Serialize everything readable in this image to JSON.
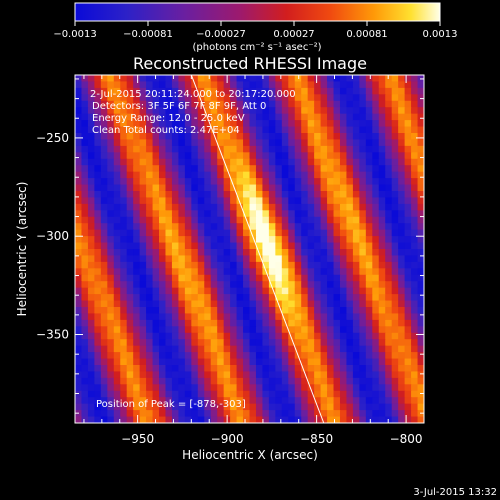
{
  "chart_data": {
    "type": "heatmap",
    "title": "Reconstructed RHESSI Image",
    "xlabel": "Heliocentric X (arcsec)",
    "ylabel": "Heliocentric Y (arcsec)",
    "xlim": [
      -985,
      -790
    ],
    "ylim": [
      -395,
      -218
    ],
    "x_ticks": [
      -950,
      -900,
      -850,
      -800
    ],
    "x_tick_labels": [
      "−950",
      "−900",
      "−850",
      "−800"
    ],
    "y_ticks": [
      -250,
      -300,
      -350
    ],
    "y_tick_labels": [
      "−250",
      "−300",
      "−350"
    ],
    "colorbar": {
      "range": [
        -0.0013,
        0.0013
      ],
      "tick_labels": [
        "−0.0013",
        "−0.00081",
        "−0.00027",
        "0.00027",
        "0.00081",
        "0.0013"
      ],
      "unit_text": "(photons cm⁻² s⁻¹ asec⁻²)"
    },
    "annotations": [
      "2-Jul-2015 20:11:24.000 to 20:17:20.000",
      "Detectors: 3F 5F 6F 7F 8F 9F, Att 0",
      "Energy Range: 12.0 - 25.0 keV",
      "Clean     Total counts: 2.47E+04"
    ],
    "peak_label": "Position of Peak = [-878,-303]",
    "peak": {
      "x": -878,
      "y": -303
    },
    "limb_line": [
      [
        -920,
        -218
      ],
      [
        -846,
        -395
      ]
    ],
    "footer_date": "3-Jul-2015 13:32"
  }
}
